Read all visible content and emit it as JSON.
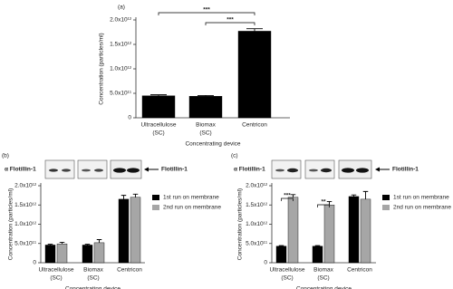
{
  "chart_data": [
    {
      "type": "bar",
      "panel": "(a)",
      "y_label": "Concentration (particles/ml)",
      "x_label": "Concentrating device",
      "categories": [
        [
          "Ultracellulose",
          "(SC)"
        ],
        [
          "Biomax",
          "(SC)"
        ],
        [
          "Centricon"
        ]
      ],
      "series": [
        {
          "color": "#000000",
          "values": [
            450000000000,
            440000000000,
            1770000000000
          ],
          "errors": [
            20000000000,
            15000000000,
            50000000000
          ]
        }
      ],
      "ylim": [
        0,
        2000000000000
      ],
      "yticks": [
        0,
        {
          "value": 500000000000,
          "label": "5.0x10¹¹"
        },
        {
          "value": 1000000000000,
          "label": "1.0x10¹²"
        },
        {
          "value": 1500000000000,
          "label": "1.5x10¹²"
        },
        {
          "value": 2000000000000,
          "label": "2.0x10¹²"
        }
      ],
      "annotations": [
        "***",
        "***"
      ]
    },
    {
      "type": "bar",
      "panel": "(b)",
      "antibody": "α Flotillin-1",
      "band_label": "Flotillin-1",
      "y_label": "Concentration (particles/ml)",
      "x_label": "Concentrating device",
      "categories": [
        [
          "Ultracellulose",
          "(SC)"
        ],
        [
          "Biomax",
          "(SC)"
        ],
        [
          "Centricon"
        ]
      ],
      "series": [
        {
          "name": "1st run on membrane",
          "color": "#000000",
          "values": [
            460000000000,
            460000000000,
            1650000000000
          ],
          "errors": [
            20000000000,
            20000000000,
            100000000000
          ]
        },
        {
          "name": "2nd run on membrane",
          "color": "#a6a6a6",
          "values": [
            490000000000,
            520000000000,
            1700000000000
          ],
          "errors": [
            40000000000,
            80000000000,
            80000000000
          ]
        }
      ],
      "ylim": [
        0,
        2000000000000
      ],
      "yticks": [
        0,
        {
          "value": 500000000000,
          "label": "5.0x10¹¹"
        },
        {
          "value": 1000000000000,
          "label": "1.0x10¹²"
        },
        {
          "value": 1500000000000,
          "label": "1.5x10¹²"
        },
        {
          "value": 2000000000000,
          "label": "2.0x10¹²"
        }
      ],
      "legend": "right"
    },
    {
      "type": "bar",
      "panel": "(c)",
      "antibody": "α Flotillin-1",
      "band_label": "Flotillin-1",
      "y_label": "Concentration (particles/ml)",
      "x_label": "Concentrating device",
      "categories": [
        [
          "Ultracellulose",
          "(SC)"
        ],
        [
          "Biomax",
          "(SC)"
        ],
        [
          "Centricon"
        ]
      ],
      "series": [
        {
          "name": "1st run on membrane",
          "color": "#000000",
          "values": [
            430000000000,
            430000000000,
            1720000000000
          ],
          "errors": [
            15000000000,
            15000000000,
            40000000000
          ]
        },
        {
          "name": "2nd run on membrane",
          "color": "#a6a6a6",
          "values": [
            1700000000000,
            1500000000000,
            1650000000000
          ],
          "errors": [
            70000000000,
            90000000000,
            200000000000
          ]
        }
      ],
      "ylim": [
        0,
        2000000000000
      ],
      "yticks": [
        0,
        {
          "value": 500000000000,
          "label": "5.0x10¹¹"
        },
        {
          "value": 1000000000000,
          "label": "1.0x10¹²"
        },
        {
          "value": 1500000000000,
          "label": "1.5x10¹²"
        },
        {
          "value": 2000000000000,
          "label": "2.0x10¹²"
        }
      ],
      "annotations": [
        "***",
        "**"
      ],
      "legend": "right"
    }
  ]
}
